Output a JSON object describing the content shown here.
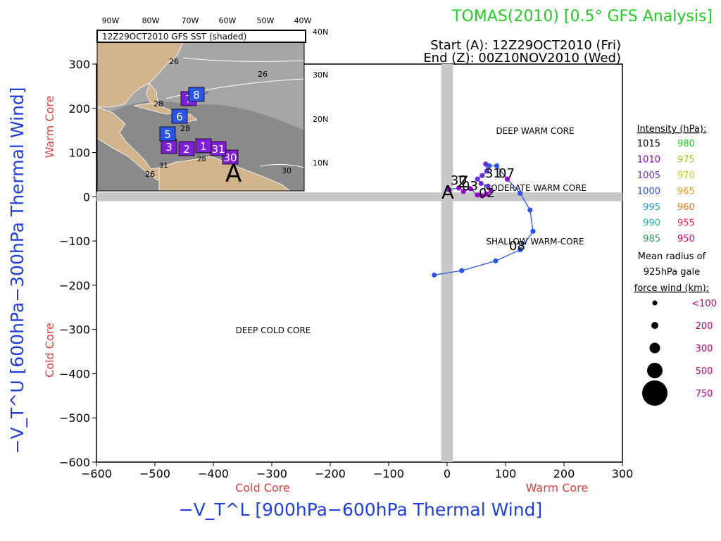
{
  "header": {
    "title": "TOMAS(2010) [0.5° GFS Analysis]",
    "start": "Start (A): 12Z29OCT2010 (Fri)",
    "end": "End (Z): 00Z10NOV2010 (Wed)"
  },
  "colors": {
    "title": "#22cc22",
    "axis_title": "#1f3fd8",
    "core_label": "#e04040",
    "track_line": "#2a55e6",
    "quadrant_band": "#c8c8c8",
    "land": "#d2b48c",
    "sea": "#a6a6a6"
  },
  "chart_data": {
    "type": "scatter",
    "xlabel": "−V_T^L [900hPa−600hPa Thermal Wind]",
    "ylabel": "−V_T^U [600hPa−300hPa Thermal Wind]",
    "xlim": [
      -600,
      300
    ],
    "ylim": [
      -600,
      300
    ],
    "xticks": [
      -600,
      -500,
      -400,
      -300,
      -200,
      -100,
      0,
      100,
      200,
      300
    ],
    "yticks": [
      300,
      200,
      100,
      0,
      -100,
      -200,
      -300,
      -400,
      -500,
      -600
    ],
    "x_core_labels": {
      "left": "Cold Core",
      "right": "Warm Core"
    },
    "y_core_labels": {
      "top": "Warm Core",
      "bottom": "Cold Core"
    },
    "regions": [
      "DEEP WARM CORE",
      "MODERATE WARM CORE",
      "SHALLOW WARM-CORE",
      "DEEP COLD CORE"
    ],
    "track_markers": [
      "A",
      "Z"
    ],
    "point_labels": [
      "30",
      "31",
      "02",
      "03",
      "07",
      "08"
    ],
    "track": [
      {
        "x": 3,
        "y": 16,
        "c": "#9900cc"
      },
      {
        "x": 20,
        "y": 20,
        "c": "#9900cc"
      },
      {
        "x": 28,
        "y": 12,
        "c": "#9900cc"
      },
      {
        "x": 40,
        "y": 18,
        "c": "#9900cc"
      },
      {
        "x": 52,
        "y": 4,
        "c": "#9900cc"
      },
      {
        "x": 60,
        "y": 2,
        "c": "#9900cc"
      },
      {
        "x": 68,
        "y": 6,
        "c": "#9900cc"
      },
      {
        "x": 75,
        "y": 14,
        "c": "#9900cc"
      },
      {
        "x": 70,
        "y": 24,
        "c": "#6b2ed6"
      },
      {
        "x": 58,
        "y": 30,
        "c": "#6b2ed6"
      },
      {
        "x": 52,
        "y": 40,
        "c": "#6b2ed6"
      },
      {
        "x": 60,
        "y": 48,
        "c": "#6b2ed6"
      },
      {
        "x": 68,
        "y": 58,
        "c": "#6b2ed6"
      },
      {
        "x": 66,
        "y": 74,
        "c": "#6b2ed6"
      },
      {
        "x": 72,
        "y": 70,
        "c": "#2a55e6"
      },
      {
        "x": 85,
        "y": 70,
        "c": "#2a55e6"
      },
      {
        "x": 103,
        "y": 40,
        "c": "#9900cc"
      },
      {
        "x": 125,
        "y": 8,
        "c": "#2a55e6"
      },
      {
        "x": 142,
        "y": -30,
        "c": "#2a55e6"
      },
      {
        "x": 147,
        "y": -78,
        "c": "#2a55e6"
      },
      {
        "x": 125,
        "y": -120,
        "c": "#2a55e6"
      },
      {
        "x": 83,
        "y": -145,
        "c": "#2a55e6"
      },
      {
        "x": 25,
        "y": -167,
        "c": "#2a55e6"
      },
      {
        "x": -22,
        "y": -177,
        "c": "#2a55e6"
      }
    ]
  },
  "intensity_legend": {
    "title": "Intensity (hPa):",
    "rows": [
      {
        "a": "1015",
        "ac": "#000000",
        "b": "980",
        "bc": "#22cc22"
      },
      {
        "a": "1010",
        "ac": "#9900cc",
        "b": "975",
        "bc": "#99cc22"
      },
      {
        "a": "1005",
        "ac": "#6b2ed6",
        "b": "970",
        "bc": "#cccc22"
      },
      {
        "a": "1000",
        "ac": "#2a55e6",
        "b": "965",
        "bc": "#e69922"
      },
      {
        "a": "995",
        "ac": "#1fa0e6",
        "b": "960",
        "bc": "#e67722"
      },
      {
        "a": "990",
        "ac": "#11bbaa",
        "b": "955",
        "bc": "#e6225a"
      },
      {
        "a": "985",
        "ac": "#22aa55",
        "b": "950",
        "bc": "#cc0077"
      }
    ]
  },
  "radius_legend": {
    "title_1": "Mean radius of",
    "title_2": "925hPa gale",
    "title_3": "force wind (km):",
    "items": [
      "<100",
      "200",
      "300",
      "500",
      "750"
    ],
    "label_color": "#cc0077"
  },
  "inset": {
    "title": "12Z29OCT2010 GFS SST (shaded)",
    "lon_labels": [
      "90W",
      "80W",
      "70W",
      "60W",
      "50W",
      "40W"
    ],
    "lat_labels": [
      "40N",
      "30N",
      "20N",
      "10N"
    ],
    "sst_labels": [
      "26",
      "26",
      "28",
      "28",
      "28",
      "30",
      "31",
      "26"
    ],
    "track_marker": "A",
    "boxes": [
      {
        "label": "30",
        "c": "#7f1fd6"
      },
      {
        "label": "31",
        "c": "#7f1fd6"
      },
      {
        "label": "1",
        "c": "#7f1fd6"
      },
      {
        "label": "2",
        "c": "#7f1fd6"
      },
      {
        "label": "3",
        "c": "#7f1fd6"
      },
      {
        "label": "5",
        "c": "#2a55e6"
      },
      {
        "label": "6",
        "c": "#2a55e6"
      },
      {
        "label": "7",
        "c": "#7f1fd6"
      },
      {
        "label": "8",
        "c": "#2a55e6"
      }
    ]
  }
}
